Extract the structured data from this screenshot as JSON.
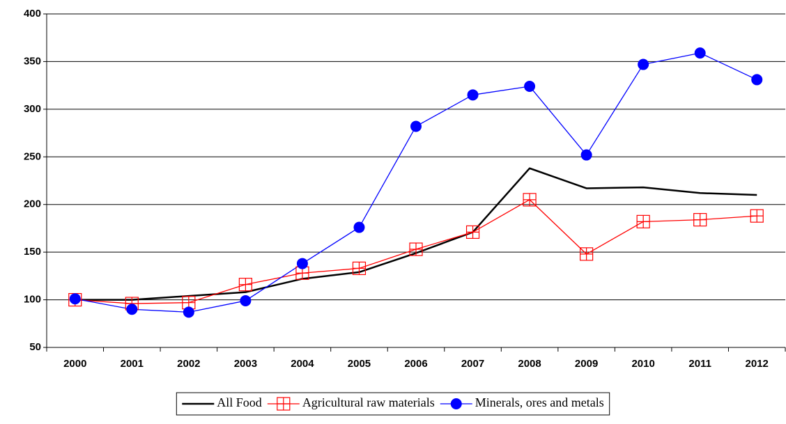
{
  "chart_data": {
    "type": "line",
    "categories": [
      "2000",
      "2001",
      "2002",
      "2003",
      "2004",
      "2005",
      "2006",
      "2007",
      "2008",
      "2009",
      "2010",
      "2011",
      "2012"
    ],
    "series": [
      {
        "name": "All Food",
        "color": "#000000",
        "linewidth": 2.5,
        "values": [
          100,
          100,
          104,
          108,
          122,
          129,
          149,
          171,
          238,
          217,
          218,
          212,
          210
        ]
      },
      {
        "name": "Agricultural raw materials",
        "color": "#ff0000",
        "linewidth": 1.3,
        "marker": "square-plus",
        "values": [
          100,
          96,
          97,
          116,
          128,
          133,
          153,
          171,
          205,
          148,
          182,
          184,
          188
        ]
      },
      {
        "name": "Minerals, ores and metals",
        "color": "#0000ff",
        "linewidth": 1.3,
        "marker": "circle",
        "values": [
          101,
          90,
          87,
          99,
          138,
          176,
          282,
          315,
          324,
          252,
          347,
          359,
          331
        ]
      }
    ],
    "ylim": [
      50,
      400
    ],
    "yticks": [
      50,
      100,
      150,
      200,
      250,
      300,
      350,
      400
    ],
    "grid": true,
    "legend": "bottom"
  }
}
